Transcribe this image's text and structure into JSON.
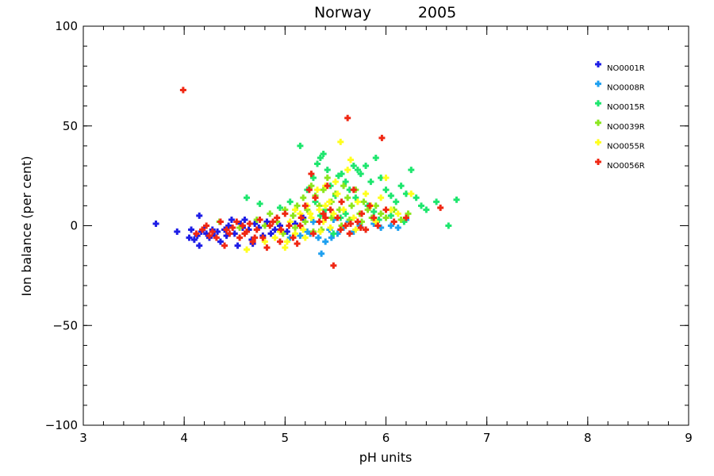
{
  "chart_data": {
    "type": "scatter",
    "title_left": "Norway",
    "title_right": "2005",
    "xlabel": "pH units",
    "ylabel": "Ion balance (per cent)",
    "xlim": [
      3,
      9
    ],
    "ylim": [
      -100,
      100
    ],
    "x_major_ticks": [
      3,
      4,
      5,
      6,
      7,
      8,
      9
    ],
    "y_major_ticks": [
      -100,
      -50,
      0,
      50,
      100
    ],
    "x_minor_step": 0.2,
    "y_minor_step": 10,
    "legend_position": "top-right",
    "grid": false,
    "series": [
      {
        "name": "NO0001R",
        "color": "#1e1ee6",
        "points": [
          [
            3.72,
            1
          ],
          [
            3.93,
            -3
          ],
          [
            4.07,
            -2
          ],
          [
            4.1,
            -7
          ],
          [
            4.13,
            -5
          ],
          [
            4.15,
            5
          ],
          [
            4.17,
            -3
          ],
          [
            4.2,
            -1
          ],
          [
            4.22,
            -4
          ],
          [
            4.25,
            -6
          ],
          [
            4.28,
            -2
          ],
          [
            4.3,
            -5
          ],
          [
            4.33,
            -3
          ],
          [
            4.36,
            -8
          ],
          [
            4.4,
            -2
          ],
          [
            4.44,
            0
          ],
          [
            4.47,
            3
          ],
          [
            4.5,
            -4
          ],
          [
            4.53,
            -10
          ],
          [
            4.56,
            1
          ],
          [
            4.6,
            3
          ],
          [
            4.64,
            -2
          ],
          [
            4.67,
            -7
          ],
          [
            4.7,
            1
          ],
          [
            4.74,
            -1
          ],
          [
            4.78,
            -5
          ],
          [
            4.82,
            2
          ],
          [
            4.86,
            -4
          ],
          [
            4.9,
            -2
          ],
          [
            4.95,
            0
          ],
          [
            5.02,
            -3
          ],
          [
            5.1,
            1
          ],
          [
            5.18,
            4
          ],
          [
            4.15,
            -10
          ],
          [
            4.05,
            -6
          ],
          [
            4.42,
            -5
          ],
          [
            4.58,
            -1
          ],
          [
            4.68,
            -9
          ]
        ]
      },
      {
        "name": "NO0008R",
        "color": "#1ea0f0",
        "points": [
          [
            5.15,
            -5
          ],
          [
            5.22,
            -3
          ],
          [
            5.28,
            2
          ],
          [
            5.33,
            -6
          ],
          [
            5.36,
            -14
          ],
          [
            5.4,
            -8
          ],
          [
            5.44,
            -2
          ],
          [
            5.48,
            3
          ],
          [
            5.52,
            -4
          ],
          [
            5.58,
            -1
          ],
          [
            5.63,
            2
          ],
          [
            5.68,
            -3
          ],
          [
            5.74,
            0
          ],
          [
            5.8,
            -2
          ],
          [
            5.88,
            1
          ],
          [
            5.95,
            -1
          ],
          [
            6.05,
            0
          ],
          [
            6.12,
            -1
          ],
          [
            6.2,
            3
          ],
          [
            5.05,
            -6
          ],
          [
            5.25,
            -4
          ],
          [
            5.46,
            -6
          ]
        ]
      },
      {
        "name": "NO0015R",
        "color": "#1ee66e",
        "points": [
          [
            4.62,
            14
          ],
          [
            4.75,
            11
          ],
          [
            4.95,
            9
          ],
          [
            5.05,
            12
          ],
          [
            5.15,
            40
          ],
          [
            5.22,
            18
          ],
          [
            5.28,
            24
          ],
          [
            5.32,
            31
          ],
          [
            5.35,
            34
          ],
          [
            5.38,
            36
          ],
          [
            5.42,
            28
          ],
          [
            5.45,
            20
          ],
          [
            5.5,
            15
          ],
          [
            5.53,
            25
          ],
          [
            5.56,
            26
          ],
          [
            5.6,
            22
          ],
          [
            5.64,
            18
          ],
          [
            5.68,
            30
          ],
          [
            5.72,
            28
          ],
          [
            5.75,
            26
          ],
          [
            5.8,
            30
          ],
          [
            5.85,
            22
          ],
          [
            5.9,
            34
          ],
          [
            5.95,
            24
          ],
          [
            6.0,
            18
          ],
          [
            6.05,
            15
          ],
          [
            6.1,
            12
          ],
          [
            6.15,
            20
          ],
          [
            6.2,
            16
          ],
          [
            6.25,
            28
          ],
          [
            6.3,
            14
          ],
          [
            6.35,
            10
          ],
          [
            6.4,
            8
          ],
          [
            6.5,
            12
          ],
          [
            6.62,
            0
          ],
          [
            6.7,
            13
          ],
          [
            5.3,
            12
          ],
          [
            5.4,
            8
          ],
          [
            5.48,
            -4
          ],
          [
            5.55,
            4
          ],
          [
            5.7,
            14
          ],
          [
            5.82,
            10
          ],
          [
            5.88,
            7
          ],
          [
            5.93,
            3
          ],
          [
            6.05,
            5
          ],
          [
            6.18,
            2
          ],
          [
            5.35,
            5
          ],
          [
            5.6,
            6
          ]
        ]
      },
      {
        "name": "NO0039R",
        "color": "#8ce61e",
        "points": [
          [
            4.35,
            2
          ],
          [
            4.55,
            -1
          ],
          [
            4.72,
            3
          ],
          [
            4.85,
            6
          ],
          [
            4.92,
            2
          ],
          [
            5.0,
            8
          ],
          [
            5.08,
            5
          ],
          [
            5.12,
            10
          ],
          [
            5.18,
            14
          ],
          [
            5.22,
            8
          ],
          [
            5.26,
            20
          ],
          [
            5.3,
            15
          ],
          [
            5.34,
            10
          ],
          [
            5.38,
            18
          ],
          [
            5.42,
            24
          ],
          [
            5.46,
            12
          ],
          [
            5.5,
            16
          ],
          [
            5.54,
            8
          ],
          [
            5.58,
            20
          ],
          [
            5.62,
            14
          ],
          [
            5.66,
            10
          ],
          [
            5.7,
            18
          ],
          [
            5.74,
            6
          ],
          [
            5.78,
            12
          ],
          [
            5.82,
            8
          ],
          [
            5.86,
            4
          ],
          [
            5.9,
            10
          ],
          [
            5.95,
            6
          ],
          [
            6.0,
            4
          ],
          [
            6.08,
            8
          ],
          [
            6.15,
            3
          ],
          [
            6.22,
            6
          ],
          [
            5.2,
            2
          ],
          [
            5.36,
            -2
          ],
          [
            5.46,
            4
          ],
          [
            5.56,
            0
          ],
          [
            5.64,
            3
          ],
          [
            5.76,
            2
          ],
          [
            5.28,
            -3
          ],
          [
            5.1,
            -1
          ],
          [
            4.98,
            -4
          ],
          [
            4.8,
            0
          ]
        ]
      },
      {
        "name": "NO0055R",
        "color": "#ffff1e",
        "points": [
          [
            4.62,
            -12
          ],
          [
            4.8,
            -8
          ],
          [
            4.95,
            -3
          ],
          [
            5.0,
            -11
          ],
          [
            5.05,
            2
          ],
          [
            5.1,
            -4
          ],
          [
            5.15,
            6
          ],
          [
            5.18,
            -2
          ],
          [
            5.22,
            10
          ],
          [
            5.26,
            4
          ],
          [
            5.3,
            14
          ],
          [
            5.34,
            8
          ],
          [
            5.38,
            2
          ],
          [
            5.4,
            20
          ],
          [
            5.44,
            12
          ],
          [
            5.48,
            6
          ],
          [
            5.52,
            16
          ],
          [
            5.55,
            42
          ],
          [
            5.58,
            8
          ],
          [
            5.62,
            28
          ],
          [
            5.65,
            33
          ],
          [
            5.68,
            4
          ],
          [
            5.72,
            12
          ],
          [
            5.76,
            6
          ],
          [
            5.8,
            16
          ],
          [
            5.85,
            10
          ],
          [
            5.9,
            2
          ],
          [
            5.95,
            14
          ],
          [
            6.0,
            24
          ],
          [
            6.05,
            8
          ],
          [
            6.12,
            6
          ],
          [
            6.25,
            16
          ],
          [
            5.2,
            -6
          ],
          [
            5.35,
            -3
          ],
          [
            5.45,
            -1
          ],
          [
            5.6,
            0
          ],
          [
            5.7,
            -2
          ],
          [
            5.25,
            6
          ],
          [
            5.5,
            22
          ],
          [
            5.4,
            10
          ],
          [
            5.1,
            8
          ],
          [
            4.9,
            -6
          ],
          [
            5.02,
            -8
          ],
          [
            5.32,
            18
          ]
        ]
      },
      {
        "name": "NO0056R",
        "color": "#f02814",
        "points": [
          [
            3.99,
            68
          ],
          [
            4.12,
            -4
          ],
          [
            4.18,
            -2
          ],
          [
            4.22,
            0
          ],
          [
            4.28,
            -3
          ],
          [
            4.32,
            -6
          ],
          [
            4.36,
            2
          ],
          [
            4.4,
            -10
          ],
          [
            4.45,
            -4
          ],
          [
            4.48,
            -1
          ],
          [
            4.52,
            2
          ],
          [
            4.55,
            -6
          ],
          [
            4.58,
            0
          ],
          [
            4.62,
            -3
          ],
          [
            4.65,
            1
          ],
          [
            4.68,
            -8
          ],
          [
            4.72,
            -2
          ],
          [
            4.75,
            3
          ],
          [
            4.78,
            -6
          ],
          [
            4.82,
            -11
          ],
          [
            4.85,
            0
          ],
          [
            4.88,
            2
          ],
          [
            4.92,
            4
          ],
          [
            4.96,
            -2
          ],
          [
            5.0,
            6
          ],
          [
            5.04,
            0
          ],
          [
            5.08,
            -6
          ],
          [
            5.12,
            -9
          ],
          [
            5.16,
            4
          ],
          [
            5.2,
            10
          ],
          [
            5.24,
            18
          ],
          [
            5.26,
            26
          ],
          [
            5.3,
            14
          ],
          [
            5.34,
            2
          ],
          [
            5.38,
            6
          ],
          [
            5.42,
            20
          ],
          [
            5.45,
            8
          ],
          [
            5.48,
            -20
          ],
          [
            5.52,
            4
          ],
          [
            5.56,
            12
          ],
          [
            5.6,
            0
          ],
          [
            5.62,
            54
          ],
          [
            5.64,
            -4
          ],
          [
            5.68,
            18
          ],
          [
            5.72,
            2
          ],
          [
            5.76,
            6
          ],
          [
            5.8,
            -2
          ],
          [
            5.84,
            10
          ],
          [
            5.88,
            4
          ],
          [
            5.92,
            0
          ],
          [
            5.96,
            44
          ],
          [
            6.0,
            8
          ],
          [
            6.08,
            2
          ],
          [
            6.2,
            4
          ],
          [
            6.54,
            9
          ],
          [
            4.25,
            -5
          ],
          [
            4.42,
            -2
          ],
          [
            4.6,
            -4
          ],
          [
            4.7,
            -6
          ],
          [
            5.28,
            -4
          ],
          [
            5.55,
            -2
          ],
          [
            5.65,
            1
          ],
          [
            5.75,
            -1
          ],
          [
            5.4,
            4
          ],
          [
            5.15,
            0
          ],
          [
            4.95,
            -8
          ]
        ]
      }
    ]
  }
}
